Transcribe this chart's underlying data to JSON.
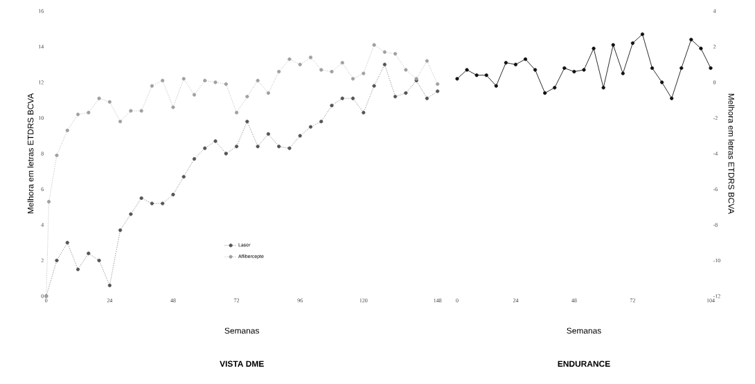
{
  "chart_data": [
    {
      "type": "line",
      "title": "VISTA DME",
      "xlabel": "Semanas",
      "ylabel": "Melhora em letras ETDRS BCVA",
      "xlim": [
        0,
        148
      ],
      "ylim": [
        0,
        16
      ],
      "xticks": [
        0,
        24,
        48,
        72,
        96,
        120,
        148
      ],
      "yticks": [
        0,
        2,
        4,
        6,
        8,
        10,
        12,
        14,
        16
      ],
      "legend": "bottom",
      "marker": "circle",
      "line_style": "dotted",
      "grid": false,
      "series": [
        {
          "name": "Laser",
          "color": "#555555",
          "x": [
            0,
            4,
            8,
            12,
            16,
            20,
            24,
            28,
            32,
            36,
            40,
            44,
            48,
            52,
            56,
            60,
            64,
            68,
            72,
            76,
            80,
            84,
            88,
            92,
            96,
            100,
            104,
            108,
            112,
            116,
            120,
            124,
            128,
            132,
            136,
            140,
            144,
            148
          ],
          "values": [
            0,
            2.0,
            3.0,
            1.5,
            2.4,
            2.0,
            0.6,
            3.7,
            4.6,
            5.5,
            5.2,
            5.2,
            5.7,
            6.7,
            7.7,
            8.3,
            8.7,
            8.0,
            8.4,
            9.8,
            8.4,
            9.1,
            8.4,
            8.3,
            9.0,
            9.5,
            9.8,
            10.7,
            11.1,
            11.1,
            10.3,
            11.8,
            13.0,
            11.2,
            11.4,
            12.1,
            11.1,
            11.5
          ]
        },
        {
          "name": "Aflibercepte",
          "color": "#a0a0a0",
          "x": [
            0,
            1,
            4,
            8,
            12,
            16,
            20,
            24,
            28,
            32,
            36,
            40,
            44,
            48,
            52,
            56,
            60,
            64,
            68,
            72,
            76,
            80,
            84,
            88,
            92,
            96,
            100,
            104,
            108,
            112,
            116,
            120,
            124,
            128,
            132,
            136,
            140,
            144,
            148
          ],
          "values": [
            0,
            5.3,
            7.9,
            9.3,
            10.2,
            10.3,
            11.1,
            10.9,
            9.8,
            10.4,
            10.4,
            11.8,
            12.1,
            10.6,
            12.2,
            11.3,
            12.1,
            12.0,
            11.9,
            10.3,
            11.2,
            12.1,
            11.4,
            12.6,
            13.3,
            13.0,
            13.4,
            12.7,
            12.6,
            13.1,
            12.2,
            12.5,
            14.1,
            13.7,
            13.6,
            12.7,
            12.2,
            13.2,
            11.9
          ]
        }
      ]
    },
    {
      "type": "line",
      "title": "ENDURANCE",
      "xlabel": "Semanas",
      "ylabel": "Melhora em letras ETDRS BCVA",
      "xlim": [
        0,
        104
      ],
      "ylim": [
        -12,
        4
      ],
      "xticks": [
        0,
        24,
        48,
        72,
        104
      ],
      "yticks": [
        -12,
        -10,
        -8,
        -6,
        -4,
        -2,
        0,
        2,
        4
      ],
      "marker": "circle",
      "line_style": "solid",
      "grid": false,
      "series": [
        {
          "color": "#111111",
          "x": [
            0,
            4,
            8,
            12,
            16,
            20,
            24,
            28,
            32,
            36,
            40,
            44,
            48,
            52,
            56,
            60,
            64,
            68,
            72,
            76,
            80,
            84,
            88,
            92,
            96,
            100,
            104
          ],
          "values": [
            0.2,
            0.7,
            0.4,
            0.4,
            -0.2,
            1.1,
            1.0,
            1.3,
            0.7,
            -0.6,
            -0.3,
            0.8,
            0.6,
            0.7,
            1.9,
            -0.3,
            2.1,
            0.5,
            2.2,
            2.7,
            0.8,
            0.0,
            -0.9,
            0.8,
            2.4,
            1.9,
            0.8
          ]
        }
      ]
    }
  ]
}
